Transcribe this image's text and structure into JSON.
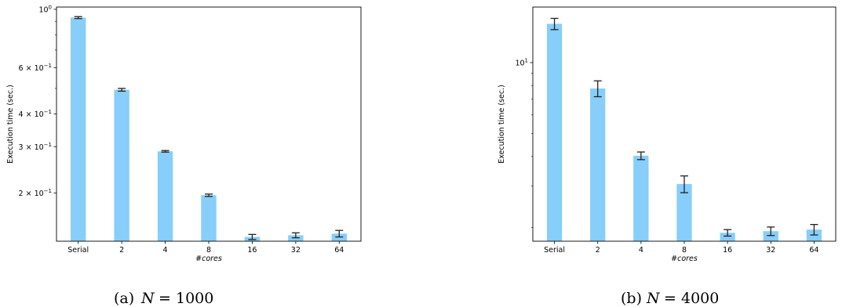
{
  "chart_data": [
    {
      "type": "bar",
      "caption_prefix": "(a) ",
      "caption_var": "N",
      "caption_eq": " = 1000",
      "xlabel": "#cores",
      "ylabel": "Execution time (sec.)",
      "yscale": "log",
      "ylim": [
        0.131,
        1.02
      ],
      "categories": [
        "Serial",
        "2",
        "4",
        "8",
        "16",
        "32",
        "64"
      ],
      "values": [
        0.93,
        0.494,
        0.288,
        0.196,
        0.136,
        0.138,
        0.14
      ],
      "errors": [
        0.008,
        0.006,
        0.002,
        0.002,
        0.003,
        0.003,
        0.004
      ],
      "yticks": [
        {
          "value": 1.0,
          "base": "10",
          "exp": "0"
        },
        {
          "value": 0.6,
          "base": "6 × 10",
          "exp": "−1"
        },
        {
          "value": 0.4,
          "base": "4 × 10",
          "exp": "−1"
        },
        {
          "value": 0.3,
          "base": "3 × 10",
          "exp": "−1"
        },
        {
          "value": 0.2,
          "base": "2 × 10",
          "exp": "−1"
        }
      ],
      "minor_ticks": [
        0.5,
        0.7,
        0.8,
        0.9
      ],
      "color": "#87CEFA"
    },
    {
      "type": "bar",
      "caption_prefix": "(b) ",
      "caption_var": "N",
      "caption_eq": " = 4000",
      "xlabel": "#cores",
      "ylabel": "Execution time (sec.)",
      "yscale": "log",
      "ylim": [
        1.75,
        17.2
      ],
      "categories": [
        "Serial",
        "2",
        "4",
        "8",
        "16",
        "32",
        "64"
      ],
      "values": [
        14.6,
        7.77,
        4.03,
        3.06,
        1.9,
        1.93,
        1.96
      ],
      "errors": [
        0.8,
        0.6,
        0.15,
        0.25,
        0.06,
        0.08,
        0.1
      ],
      "yticks": [
        {
          "value": 10,
          "base": "10",
          "exp": "1"
        }
      ],
      "minor_ticks": [
        2,
        3,
        4,
        5,
        6,
        7,
        8,
        9
      ],
      "color": "#87CEFA"
    }
  ]
}
